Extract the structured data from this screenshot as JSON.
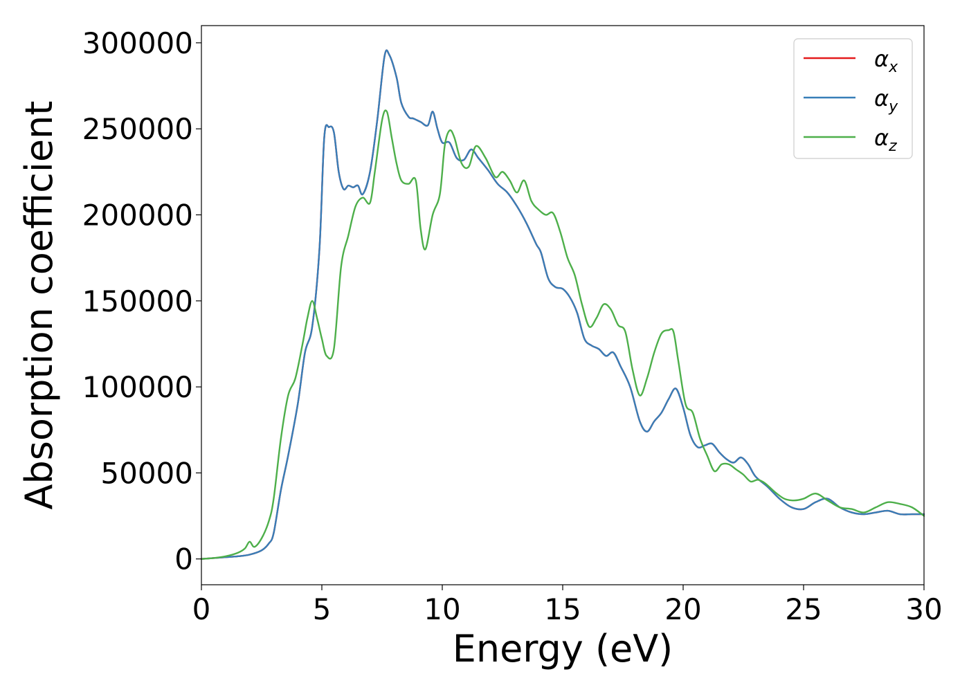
{
  "chart_data": {
    "type": "line",
    "title": "",
    "xlabel": "Energy (eV)",
    "ylabel": "Absorption coefficient",
    "xlim": [
      0,
      30
    ],
    "ylim": [
      -15000,
      310000
    ],
    "xticks": [
      0,
      5,
      10,
      15,
      20,
      25,
      30
    ],
    "xtick_labels": [
      "0",
      "5",
      "10",
      "15",
      "20",
      "25",
      "30"
    ],
    "yticks": [
      0,
      50000,
      100000,
      150000,
      200000,
      250000,
      300000
    ],
    "ytick_labels": [
      "0",
      "50000",
      "100000",
      "150000",
      "200000",
      "250000",
      "300000"
    ],
    "grid": false,
    "legend_position": "top-right",
    "series": [
      {
        "name": "α_x",
        "legend_base": "α",
        "legend_sub": "x",
        "color": "#e41a1c",
        "x": [
          0,
          0.5,
          1,
          1.5,
          2,
          2.5,
          2.8,
          3,
          3.3,
          3.6,
          4,
          4.3,
          4.6,
          4.9,
          5.1,
          5.3,
          5.5,
          5.7,
          5.9,
          6.1,
          6.3,
          6.5,
          6.7,
          7,
          7.3,
          7.6,
          7.8,
          8.1,
          8.3,
          8.6,
          8.8,
          9.1,
          9.4,
          9.6,
          9.8,
          10,
          10.3,
          10.6,
          10.9,
          11.2,
          11.5,
          11.9,
          12.3,
          12.7,
          13.1,
          13.5,
          13.9,
          14.1,
          14.4,
          14.7,
          15,
          15.3,
          15.6,
          15.9,
          16.2,
          16.5,
          16.8,
          17.1,
          17.4,
          17.8,
          18.2,
          18.5,
          18.8,
          19.1,
          19.4,
          19.7,
          20,
          20.3,
          20.6,
          20.9,
          21.2,
          21.5,
          21.8,
          22.1,
          22.4,
          22.7,
          23,
          23.5,
          24,
          24.5,
          25,
          25.5,
          26,
          26.5,
          27,
          27.5,
          28,
          28.5,
          29,
          29.5,
          30
        ],
        "values": [
          0,
          500,
          1000,
          1500,
          2500,
          5000,
          9000,
          15000,
          40000,
          60000,
          90000,
          120000,
          135000,
          180000,
          245000,
          251000,
          248000,
          225000,
          215000,
          217000,
          216000,
          217000,
          212000,
          225000,
          255000,
          292000,
          293000,
          280000,
          265000,
          257000,
          256000,
          254000,
          252000,
          260000,
          250000,
          242000,
          242000,
          233000,
          232000,
          238000,
          233000,
          226000,
          218000,
          213000,
          205000,
          195000,
          183000,
          178000,
          163000,
          158000,
          157000,
          152000,
          143000,
          128000,
          124000,
          122000,
          118000,
          120000,
          112000,
          100000,
          80000,
          74000,
          80000,
          85000,
          93000,
          99000,
          88000,
          72000,
          65000,
          66000,
          67000,
          62000,
          58000,
          56000,
          59000,
          55000,
          48000,
          42000,
          35000,
          30000,
          29000,
          33000,
          35000,
          30000,
          27000,
          26000,
          27000,
          28000,
          26000,
          26000,
          26000
        ]
      },
      {
        "name": "α_y",
        "legend_base": "α",
        "legend_sub": "y",
        "color": "#377eb8",
        "x": [
          0,
          0.5,
          1,
          1.5,
          2,
          2.5,
          2.8,
          3,
          3.3,
          3.6,
          4,
          4.3,
          4.6,
          4.9,
          5.1,
          5.3,
          5.5,
          5.7,
          5.9,
          6.1,
          6.3,
          6.5,
          6.7,
          7,
          7.3,
          7.6,
          7.8,
          8.1,
          8.3,
          8.6,
          8.8,
          9.1,
          9.4,
          9.6,
          9.8,
          10,
          10.3,
          10.6,
          10.9,
          11.2,
          11.5,
          11.9,
          12.3,
          12.7,
          13.1,
          13.5,
          13.9,
          14.1,
          14.4,
          14.7,
          15,
          15.3,
          15.6,
          15.9,
          16.2,
          16.5,
          16.8,
          17.1,
          17.4,
          17.8,
          18.2,
          18.5,
          18.8,
          19.1,
          19.4,
          19.7,
          20,
          20.3,
          20.6,
          20.9,
          21.2,
          21.5,
          21.8,
          22.1,
          22.4,
          22.7,
          23,
          23.5,
          24,
          24.5,
          25,
          25.5,
          26,
          26.5,
          27,
          27.5,
          28,
          28.5,
          29,
          29.5,
          30
        ],
        "values": [
          0,
          500,
          1000,
          1500,
          2500,
          5000,
          9000,
          15000,
          40000,
          60000,
          90000,
          120000,
          135000,
          180000,
          245000,
          251000,
          248000,
          225000,
          215000,
          217000,
          216000,
          217000,
          212000,
          225000,
          255000,
          292000,
          293000,
          280000,
          265000,
          257000,
          256000,
          254000,
          252000,
          260000,
          250000,
          242000,
          242000,
          233000,
          232000,
          238000,
          233000,
          226000,
          218000,
          213000,
          205000,
          195000,
          183000,
          178000,
          163000,
          158000,
          157000,
          152000,
          143000,
          128000,
          124000,
          122000,
          118000,
          120000,
          112000,
          100000,
          80000,
          74000,
          80000,
          85000,
          93000,
          99000,
          88000,
          72000,
          65000,
          66000,
          67000,
          62000,
          58000,
          56000,
          59000,
          55000,
          48000,
          42000,
          35000,
          30000,
          29000,
          33000,
          35000,
          30000,
          27000,
          26000,
          27000,
          28000,
          26000,
          26000,
          26000
        ]
      },
      {
        "name": "α_z",
        "legend_base": "α",
        "legend_sub": "z",
        "color": "#4daf4a",
        "x": [
          0,
          0.5,
          1,
          1.5,
          1.8,
          2,
          2.2,
          2.5,
          2.8,
          3,
          3.3,
          3.6,
          3.9,
          4.2,
          4.4,
          4.6,
          4.8,
          5,
          5.2,
          5.5,
          5.8,
          6.1,
          6.4,
          6.7,
          7,
          7.2,
          7.5,
          7.7,
          7.9,
          8.1,
          8.3,
          8.6,
          8.9,
          9.1,
          9.3,
          9.6,
          9.9,
          10.1,
          10.3,
          10.5,
          10.8,
          11.1,
          11.4,
          11.8,
          12.2,
          12.5,
          12.8,
          13.1,
          13.4,
          13.7,
          14,
          14.3,
          14.6,
          14.9,
          15.2,
          15.5,
          15.8,
          16.1,
          16.4,
          16.7,
          17,
          17.3,
          17.6,
          17.9,
          18.2,
          18.5,
          18.8,
          19.1,
          19.4,
          19.6,
          19.8,
          20.1,
          20.4,
          20.7,
          21,
          21.3,
          21.6,
          21.9,
          22.2,
          22.5,
          22.8,
          23.1,
          23.4,
          23.8,
          24.2,
          24.6,
          25,
          25.5,
          26,
          26.5,
          27,
          27.5,
          28,
          28.5,
          29,
          29.5,
          30
        ],
        "values": [
          0,
          500,
          1500,
          3500,
          6000,
          10000,
          7000,
          12000,
          22000,
          35000,
          70000,
          95000,
          105000,
          125000,
          140000,
          150000,
          140000,
          128000,
          118000,
          122000,
          170000,
          188000,
          205000,
          210000,
          207000,
          225000,
          255000,
          260000,
          245000,
          230000,
          220000,
          218000,
          220000,
          192000,
          180000,
          200000,
          212000,
          240000,
          249000,
          245000,
          230000,
          228000,
          240000,
          233000,
          222000,
          225000,
          220000,
          213000,
          220000,
          208000,
          203000,
          200000,
          201000,
          190000,
          175000,
          165000,
          148000,
          135000,
          140000,
          148000,
          145000,
          136000,
          132000,
          110000,
          95000,
          105000,
          120000,
          131000,
          133000,
          132000,
          115000,
          90000,
          85000,
          70000,
          60000,
          51000,
          55000,
          55000,
          52000,
          49000,
          45000,
          46000,
          44000,
          39000,
          35000,
          34000,
          35000,
          38000,
          34000,
          30000,
          29000,
          27000,
          30000,
          33000,
          32000,
          30000,
          25000
        ]
      }
    ]
  }
}
